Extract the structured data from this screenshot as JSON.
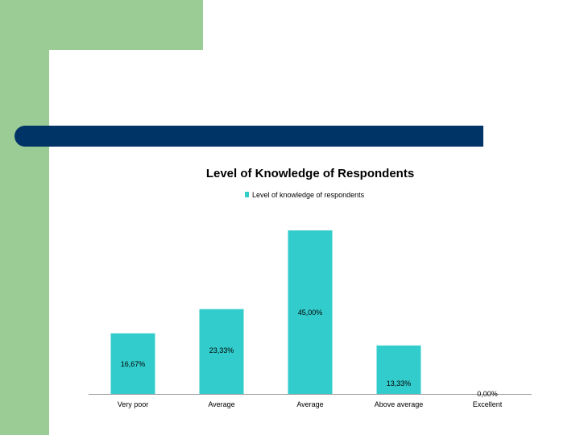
{
  "colors": {
    "accent_green": "#9ccc96",
    "header_blue": "#003467",
    "bar": "#33cccc",
    "axis": "#999999"
  },
  "chart_data": {
    "type": "bar",
    "title": "Level of Knowledge of Respondents",
    "legend": [
      "Level of knowledge of respondents"
    ],
    "legend_position": "top",
    "categories": [
      "Very poor",
      "Average",
      "Average",
      "Above average",
      "Excellent"
    ],
    "series": [
      {
        "name": "Level of knowledge of respondents",
        "values": [
          16.67,
          23.33,
          45.0,
          13.33,
          0.0
        ],
        "labels": [
          "16,67%",
          "23,33%",
          "45,00%",
          "13,33%",
          "0,00%"
        ]
      }
    ],
    "ylim": [
      0,
      50
    ],
    "grid": false,
    "xlabel": "",
    "ylabel": ""
  }
}
